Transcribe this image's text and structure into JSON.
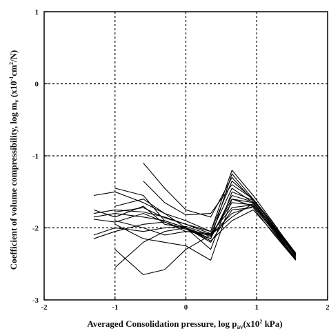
{
  "chart_data": {
    "type": "line",
    "title": "",
    "xlabel": "Averaged Consolidation pressure, log p",
    "xlabel_sub": "av",
    "xlabel_unit": "(x10",
    "xlabel_unit_sup": "2",
    "xlabel_unit_tail": " kPa)",
    "ylabel": "Coefficient of volume compressibility, log m",
    "ylabel_sub": "v",
    "ylabel_unit": " (x10",
    "ylabel_unit_sup": "-1",
    "ylabel_unit_mid": "cm",
    "ylabel_unit_sup2": "2",
    "ylabel_unit_tail": "/N)",
    "xlim": [
      -2,
      2
    ],
    "ylim": [
      -3,
      1
    ],
    "xticks": [
      "-2",
      "-1",
      "0",
      "1",
      "2"
    ],
    "yticks": [
      "-3",
      "-2",
      "-1",
      "0",
      "1"
    ],
    "grid": true,
    "legend": "none",
    "series": [
      {
        "x": [
          -1.3,
          -1.0,
          -0.6,
          -0.3,
          0.0,
          0.35,
          0.65,
          0.95,
          1.25,
          1.55
        ],
        "y": [
          -1.8,
          -1.75,
          -1.78,
          -1.85,
          -1.95,
          -2.08,
          -1.45,
          -1.65,
          -2.0,
          -2.4
        ]
      },
      {
        "x": [
          -1.3,
          -1.0,
          -0.6,
          -0.3,
          0.0,
          0.35,
          0.65,
          0.95,
          1.25,
          1.55
        ],
        "y": [
          -1.85,
          -1.8,
          -1.85,
          -1.9,
          -2.0,
          -2.12,
          -1.6,
          -1.7,
          -2.05,
          -2.42
        ]
      },
      {
        "x": [
          -1.3,
          -1.0,
          -0.6,
          -0.3,
          0.0,
          0.35,
          0.65,
          0.95,
          1.25,
          1.55
        ],
        "y": [
          -2.15,
          -2.05,
          -1.95,
          -1.92,
          -2.02,
          -2.15,
          -1.25,
          -1.6,
          -2.0,
          -2.35
        ]
      },
      {
        "x": [
          -1.3,
          -1.0,
          -0.6,
          -0.3,
          0.0,
          0.35,
          0.65,
          0.95,
          1.25,
          1.55
        ],
        "y": [
          -1.55,
          -1.5,
          -1.65,
          -1.8,
          -1.9,
          -2.05,
          -1.2,
          -1.55,
          -1.95,
          -2.38
        ]
      },
      {
        "x": [
          -1.3,
          -1.0,
          -0.6,
          -0.3,
          0.0,
          0.35,
          0.65,
          0.95,
          1.25,
          1.55
        ],
        "y": [
          -1.75,
          -1.85,
          -1.7,
          -1.95,
          -2.0,
          -2.2,
          -1.75,
          -1.72,
          -2.1,
          -2.45
        ]
      },
      {
        "x": [
          -1.0,
          -0.6,
          -0.3,
          0.0,
          0.35,
          0.65,
          0.95,
          1.25,
          1.55
        ],
        "y": [
          -1.9,
          -2.0,
          -2.1,
          -2.05,
          -2.1,
          -1.65,
          -1.68,
          -2.02,
          -2.4
        ]
      },
      {
        "x": [
          -1.0,
          -0.6,
          -0.3,
          0.0,
          0.35,
          0.65,
          0.95,
          1.25,
          1.55
        ],
        "y": [
          -2.55,
          -2.2,
          -2.05,
          -2.0,
          -2.18,
          -1.9,
          -1.75,
          -2.08,
          -2.44
        ]
      },
      {
        "x": [
          -0.6,
          -0.3,
          0.0,
          0.35,
          0.65,
          0.95,
          1.25,
          1.55
        ],
        "y": [
          -1.1,
          -1.45,
          -1.75,
          -1.85,
          -1.3,
          -1.62,
          -1.98,
          -2.36
        ]
      },
      {
        "x": [
          -1.0,
          -0.6,
          -0.3,
          0.0,
          0.35,
          0.65,
          0.95,
          1.25,
          1.55
        ],
        "y": [
          -2.3,
          -2.65,
          -2.58,
          -2.3,
          -2.1,
          -1.85,
          -1.66,
          -2.0,
          -2.38
        ]
      },
      {
        "x": [
          -1.0,
          -0.6,
          -0.3,
          0.0,
          0.35,
          0.65,
          0.95,
          1.25,
          1.55
        ],
        "y": [
          -1.95,
          -2.15,
          -2.2,
          -2.25,
          -2.45,
          -1.6,
          -1.65,
          -2.05,
          -2.42
        ]
      },
      {
        "x": [
          -1.0,
          -0.6,
          -0.3,
          0.0,
          0.35,
          0.5,
          0.65,
          0.95,
          1.25,
          1.55
        ],
        "y": [
          -1.7,
          -1.6,
          -1.8,
          -2.0,
          -2.3,
          -1.9,
          -1.5,
          -1.62,
          -1.98,
          -2.4
        ]
      },
      {
        "x": [
          -1.3,
          -1.0,
          -0.6,
          -0.3,
          0.0,
          0.35,
          0.65,
          0.95,
          1.25,
          1.55
        ],
        "y": [
          -1.88,
          -1.92,
          -1.8,
          -1.92,
          -2.05,
          -2.08,
          -1.72,
          -1.68,
          -2.03,
          -2.43
        ]
      },
      {
        "x": [
          -0.6,
          -0.3,
          0.0,
          0.35,
          0.65,
          0.95,
          1.25,
          1.55
        ],
        "y": [
          -1.35,
          -1.65,
          -1.82,
          -1.8,
          -1.4,
          -1.6,
          -1.96,
          -2.35
        ]
      },
      {
        "x": [
          -1.0,
          -0.6,
          -0.3,
          0.0,
          0.35,
          0.65,
          0.95,
          1.25,
          1.55
        ],
        "y": [
          -1.45,
          -1.55,
          -1.9,
          -2.0,
          -2.15,
          -1.55,
          -1.64,
          -2.01,
          -2.39
        ]
      },
      {
        "x": [
          -1.3,
          -1.0,
          -0.6,
          -0.3,
          0.0,
          0.35,
          0.65,
          0.95,
          1.25,
          1.55
        ],
        "y": [
          -2.1,
          -2.0,
          -2.05,
          -2.0,
          -1.98,
          -2.1,
          -1.8,
          -1.7,
          -2.06,
          -2.44
        ]
      },
      {
        "x": [
          -1.0,
          -0.6,
          -0.3,
          0.0,
          0.35,
          0.65,
          0.95,
          1.25,
          1.55
        ],
        "y": [
          -1.78,
          -1.72,
          -1.86,
          -1.95,
          -2.05,
          -1.35,
          -1.6,
          -1.99,
          -2.37
        ]
      }
    ]
  }
}
